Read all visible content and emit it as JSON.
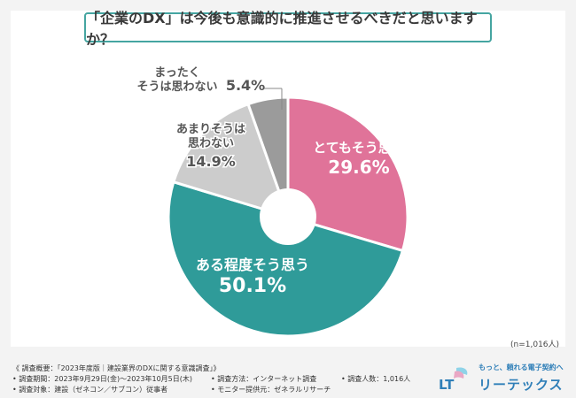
{
  "title": "「企業のDX」は今後も意識的に推進させるべきだと思いますか？",
  "sample_note": "(n=1,016人)",
  "footer": {
    "summary": "《 調査概要：「2023年度版｜建設業界のDXに関する意識調査」》",
    "period": "• 調査期間：2023年9月29日(金)〜2023年10月5日(木)",
    "method": "• 調査方法：インターネット調査",
    "count": "• 調査人数：1,016人",
    "target": "• 調査対象：建設（ゼネコン／サブコン）従事者",
    "provider": "• モニター提供元：ゼネラルリサーチ"
  },
  "brand": {
    "tagline": "もっと、頼れる電子契約へ",
    "name": "リーテックス",
    "mark": "LT"
  },
  "chart_data": {
    "type": "pie",
    "donut": true,
    "categories": [
      "とてもそう思う",
      "ある程度そう思う",
      "あまりそうは思わない",
      "まったくそうは思わない"
    ],
    "label_lines": [
      [
        "とてもそう思う"
      ],
      [
        "ある程度そう思う"
      ],
      [
        "あまりそうは",
        "思わない"
      ],
      [
        "まったく",
        "そうは思わない"
      ]
    ],
    "values": [
      29.6,
      50.1,
      14.9,
      5.4
    ],
    "value_labels": [
      "29.6%",
      "50.1%",
      "14.9%",
      "5.4%"
    ],
    "colors": [
      "#e07399",
      "#2f9b99",
      "#cccccc",
      "#9b9b9b"
    ]
  }
}
